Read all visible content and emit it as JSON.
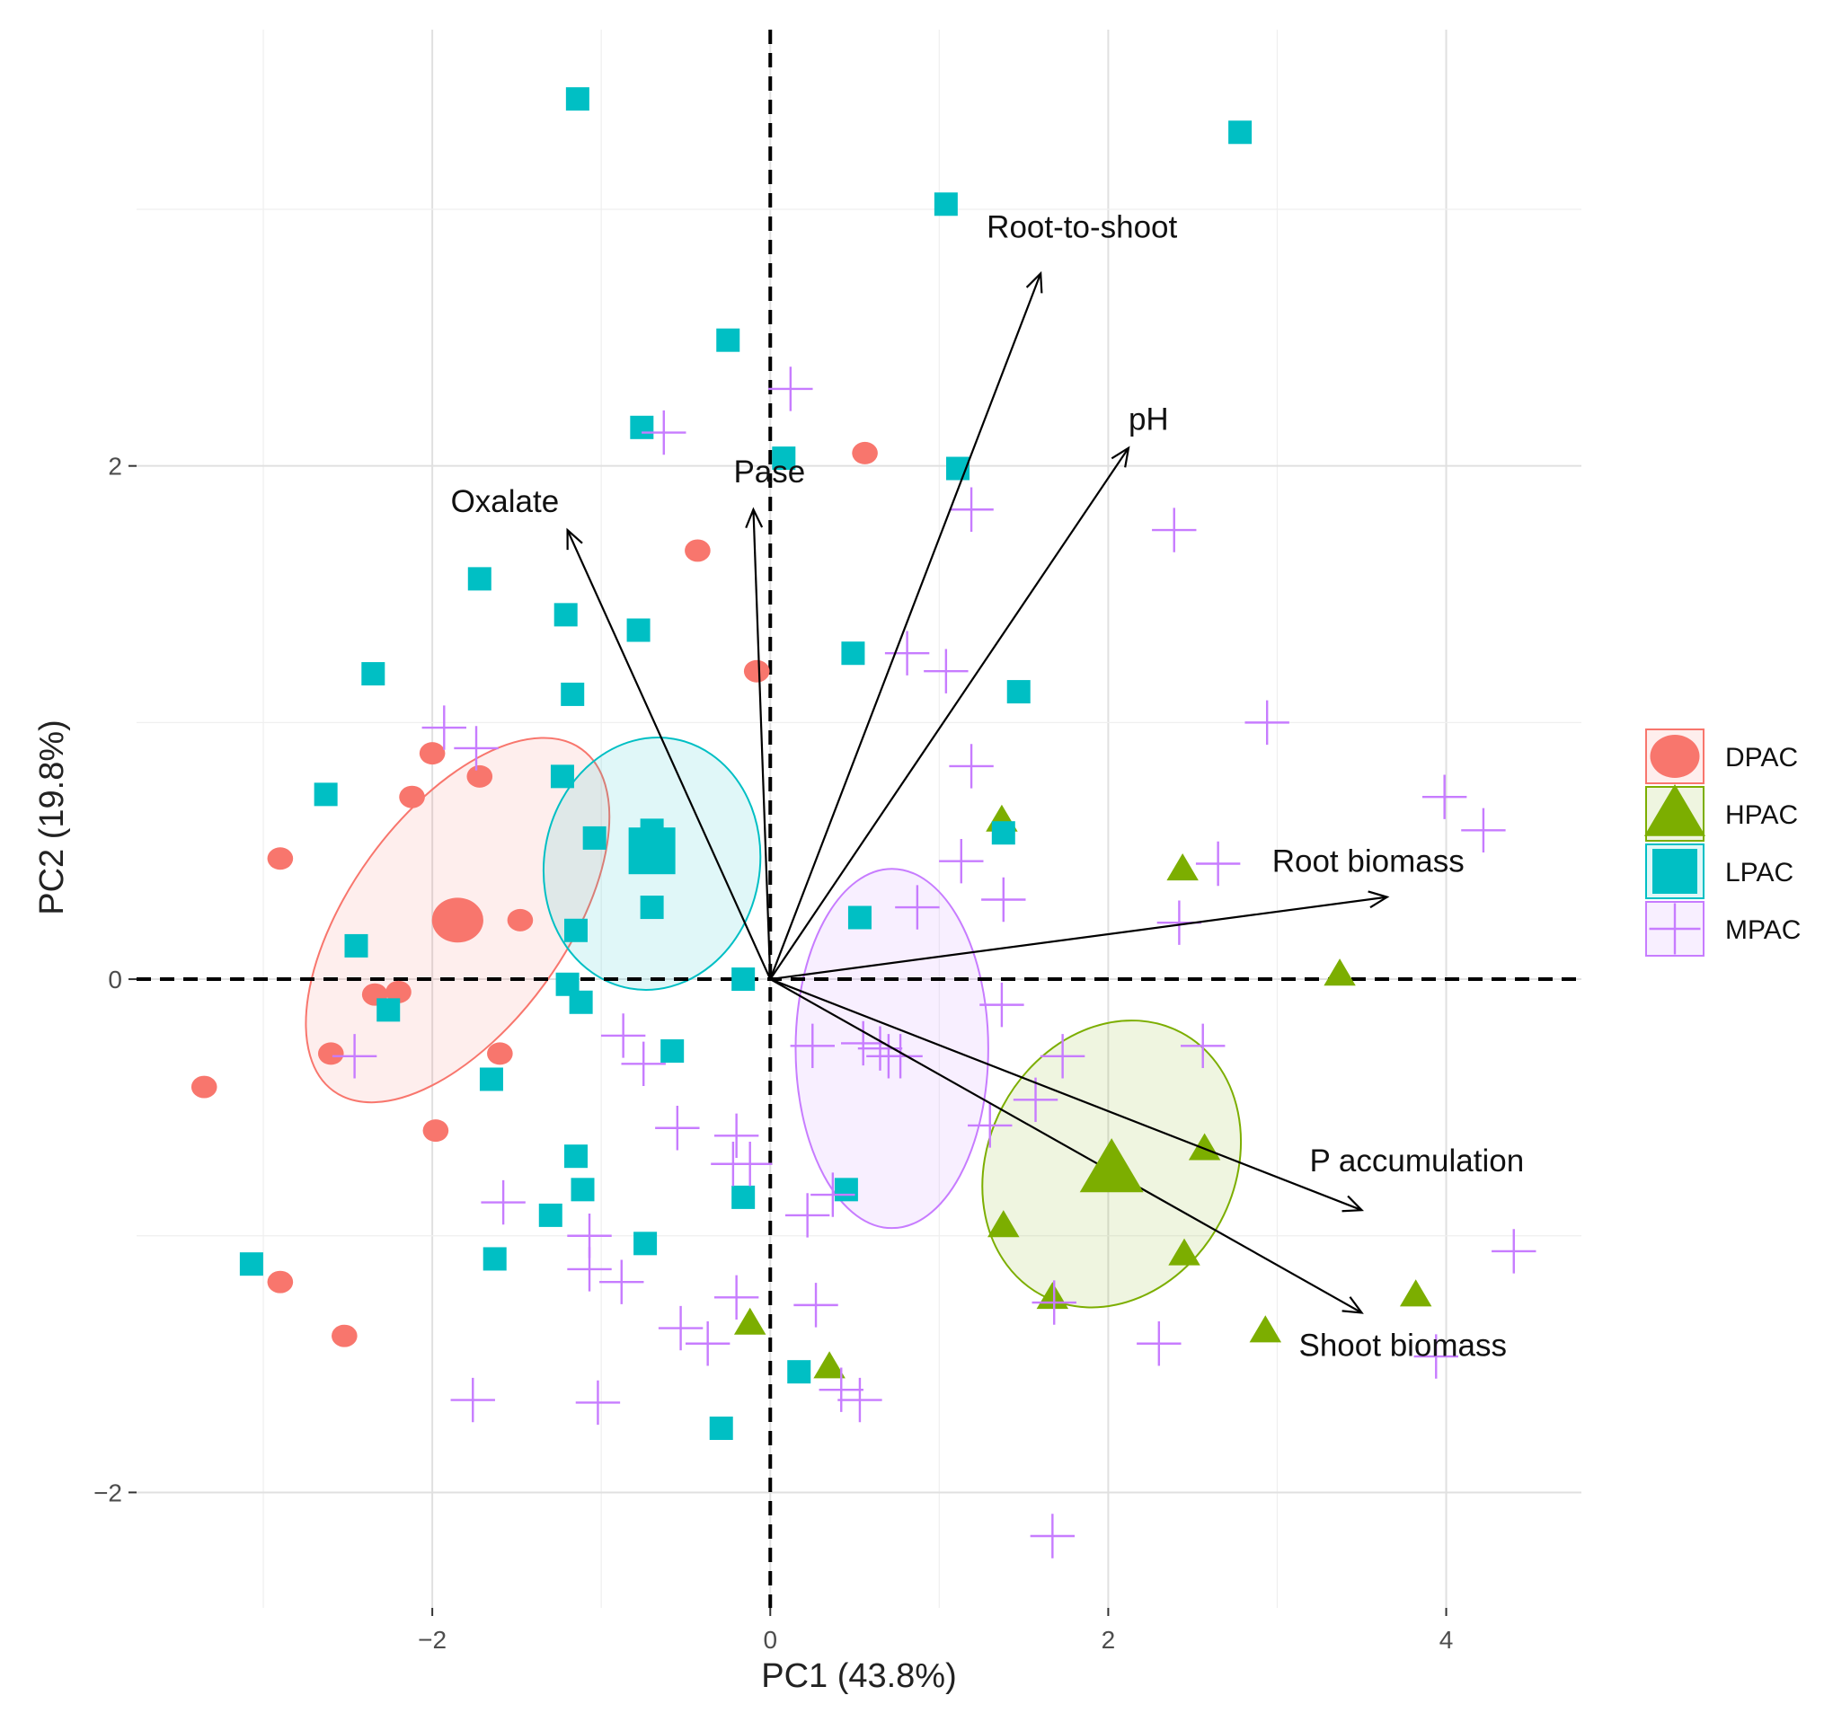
{
  "chart_data": {
    "type": "scatter",
    "subtype": "pca-biplot",
    "xlabel": "PC1 (43.8%)",
    "ylabel": "PC2 (19.8%)",
    "xlim": [
      -3.75,
      4.8
    ],
    "ylim": [
      -2.45,
      3.7
    ],
    "x_ticks": [
      -2,
      0,
      2,
      4
    ],
    "y_ticks": [
      -2,
      0,
      2
    ],
    "x_tick_labels": [
      "−2",
      "0",
      "2",
      "4"
    ],
    "y_tick_labels": [
      "−2",
      "0",
      "2"
    ],
    "grid": true,
    "reference_lines": "dashed at x=0 and y=0",
    "legend_position": "right",
    "groups": [
      {
        "name": "DPAC",
        "marker": "circle",
        "color": "#F8766D",
        "centroid": [
          -1.85,
          0.23
        ],
        "ellipse": {
          "cx": -1.85,
          "cy": 0.23,
          "rx": 1.25,
          "ry": 0.42,
          "angle_deg": 54
        },
        "points": [
          [
            -3.35,
            -0.42
          ],
          [
            -2.9,
            0.47
          ],
          [
            -2.9,
            -1.18
          ],
          [
            -2.6,
            -0.29
          ],
          [
            -2.52,
            -1.39
          ],
          [
            -2.34,
            -0.06
          ],
          [
            -2.2,
            -0.05
          ],
          [
            -2.12,
            0.71
          ],
          [
            -2.0,
            0.88
          ],
          [
            -1.98,
            -0.59
          ],
          [
            -1.72,
            0.79
          ],
          [
            -1.6,
            -0.29
          ],
          [
            -1.48,
            0.23
          ],
          [
            -0.43,
            1.67
          ],
          [
            -0.08,
            1.2
          ],
          [
            0.56,
            2.05
          ]
        ]
      },
      {
        "name": "HPAC",
        "marker": "triangle",
        "color": "#7CAE00",
        "centroid": [
          2.02,
          -0.74
        ],
        "ellipse": {
          "cx": 2.02,
          "cy": -0.72,
          "rx": 0.88,
          "ry": 0.48,
          "angle_deg": 62
        },
        "points": [
          [
            -0.12,
            -1.34
          ],
          [
            0.35,
            -1.51
          ],
          [
            1.37,
            0.62
          ],
          [
            1.38,
            -0.96
          ],
          [
            1.67,
            -1.24
          ],
          [
            2.44,
            0.43
          ],
          [
            2.45,
            -1.07
          ],
          [
            2.57,
            -0.66
          ],
          [
            2.93,
            -1.37
          ],
          [
            3.37,
            0.02
          ],
          [
            3.82,
            -1.23
          ]
        ]
      },
      {
        "name": "LPAC",
        "marker": "square",
        "color": "#00BFC4",
        "centroid": [
          -0.7,
          0.5
        ],
        "ellipse": {
          "cx": -0.7,
          "cy": 0.45,
          "rx": 0.75,
          "ry": 0.42,
          "angle_deg": 80
        },
        "points": [
          [
            -1.14,
            3.43
          ],
          [
            -0.25,
            2.49
          ],
          [
            -0.76,
            2.15
          ],
          [
            -1.72,
            1.56
          ],
          [
            -1.21,
            1.42
          ],
          [
            -0.78,
            1.36
          ],
          [
            -1.17,
            1.11
          ],
          [
            -2.35,
            1.19
          ],
          [
            -2.63,
            0.72
          ],
          [
            -1.23,
            0.79
          ],
          [
            -1.04,
            0.55
          ],
          [
            -0.7,
            0.58
          ],
          [
            -0.7,
            0.28
          ],
          [
            -1.15,
            0.19
          ],
          [
            -2.45,
            0.13
          ],
          [
            -0.16,
            0.0
          ],
          [
            -1.2,
            -0.02
          ],
          [
            -1.12,
            -0.09
          ],
          [
            -2.26,
            -0.12
          ],
          [
            -0.58,
            -0.28
          ],
          [
            -1.65,
            -0.39
          ],
          [
            -1.15,
            -0.69
          ],
          [
            -1.11,
            -0.82
          ],
          [
            -1.3,
            -0.92
          ],
          [
            -0.16,
            -0.85
          ],
          [
            0.45,
            -0.82
          ],
          [
            -3.07,
            -1.11
          ],
          [
            -1.63,
            -1.09
          ],
          [
            -0.74,
            -1.03
          ],
          [
            -0.29,
            -1.75
          ],
          [
            0.17,
            -1.53
          ],
          [
            0.53,
            0.24
          ],
          [
            0.49,
            1.27
          ],
          [
            1.11,
            1.99
          ],
          [
            1.38,
            0.57
          ],
          [
            1.47,
            1.12
          ],
          [
            0.08,
            2.03
          ],
          [
            1.04,
            3.02
          ],
          [
            2.78,
            3.3
          ]
        ]
      },
      {
        "name": "MPAC",
        "marker": "crossed-square",
        "color": "#C77CFF",
        "centroid": [
          0.6,
          -0.3
        ],
        "ellipse": {
          "cx": 0.72,
          "cy": -0.27,
          "rx": 0.57,
          "ry": 0.7,
          "angle_deg": 0
        },
        "points": [
          [
            0.12,
            2.3
          ],
          [
            -0.63,
            2.13
          ],
          [
            1.19,
            1.83
          ],
          [
            2.39,
            1.75
          ],
          [
            0.81,
            1.27
          ],
          [
            1.04,
            1.2
          ],
          [
            2.94,
            1.0
          ],
          [
            -1.93,
            0.98
          ],
          [
            -1.74,
            0.9
          ],
          [
            1.19,
            0.83
          ],
          [
            3.99,
            0.71
          ],
          [
            4.22,
            0.58
          ],
          [
            1.13,
            0.46
          ],
          [
            2.65,
            0.45
          ],
          [
            0.87,
            0.28
          ],
          [
            1.38,
            0.31
          ],
          [
            2.42,
            0.22
          ],
          [
            1.37,
            -0.1
          ],
          [
            0.25,
            -0.26
          ],
          [
            0.55,
            -0.25
          ],
          [
            0.65,
            -0.27
          ],
          [
            0.7,
            -0.3
          ],
          [
            0.77,
            -0.3
          ],
          [
            1.73,
            -0.3
          ],
          [
            2.56,
            -0.26
          ],
          [
            -0.87,
            -0.22
          ],
          [
            -0.75,
            -0.33
          ],
          [
            -2.46,
            -0.3
          ],
          [
            1.57,
            -0.47
          ],
          [
            1.3,
            -0.57
          ],
          [
            -0.55,
            -0.58
          ],
          [
            -0.2,
            -0.61
          ],
          [
            -0.12,
            -0.72
          ],
          [
            0.37,
            -0.84
          ],
          [
            -0.22,
            -0.72
          ],
          [
            0.22,
            -0.92
          ],
          [
            -1.58,
            -0.87
          ],
          [
            -1.07,
            -1.0
          ],
          [
            -1.07,
            -1.13
          ],
          [
            -0.88,
            -1.18
          ],
          [
            -0.2,
            -1.24
          ],
          [
            0.27,
            -1.27
          ],
          [
            -0.53,
            -1.36
          ],
          [
            -0.37,
            -1.42
          ],
          [
            0.42,
            -1.6
          ],
          [
            0.53,
            -1.64
          ],
          [
            1.68,
            -1.26
          ],
          [
            2.3,
            -1.42
          ],
          [
            3.94,
            -1.47
          ],
          [
            4.4,
            -1.06
          ],
          [
            -1.76,
            -1.64
          ],
          [
            -1.02,
            -1.65
          ],
          [
            1.67,
            -2.17
          ]
        ]
      }
    ],
    "loadings": [
      {
        "label": "Root-to-shoot",
        "x": 1.6,
        "y": 2.75
      },
      {
        "label": "pH",
        "x": 2.12,
        "y": 2.07
      },
      {
        "label": "Oxalate",
        "x": -1.2,
        "y": 1.75
      },
      {
        "label": "Pase",
        "x": -0.1,
        "y": 1.83
      },
      {
        "label": "Root biomass",
        "x": 3.65,
        "y": 0.32
      },
      {
        "label": "P accumulation",
        "x": 3.5,
        "y": -0.9
      },
      {
        "label": "Shoot biomass",
        "x": 3.5,
        "y": -1.3
      }
    ]
  }
}
